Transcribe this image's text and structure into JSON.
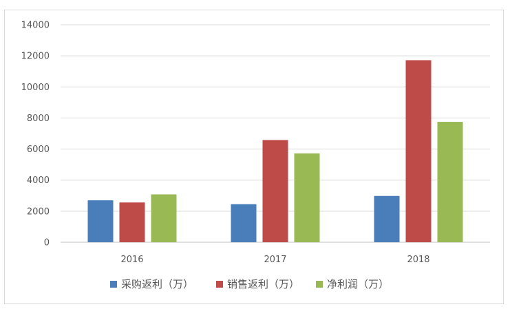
{
  "chart_data": {
    "type": "bar",
    "categories": [
      "2016",
      "2017",
      "2018"
    ],
    "series": [
      {
        "name": "采购返利（万）",
        "color": "#4a7ebb",
        "values": [
          2700,
          2450,
          2980
        ]
      },
      {
        "name": "销售返利（万）",
        "color": "#be4b48",
        "values": [
          2560,
          6580,
          11720
        ]
      },
      {
        "name": "净利润（万）",
        "color": "#98b954",
        "values": [
          3080,
          5720,
          7750
        ]
      }
    ],
    "yticks": [
      "0",
      "2000",
      "4000",
      "6000",
      "8000",
      "10000",
      "12000",
      "14000"
    ],
    "ylim": [
      0,
      14000
    ],
    "grid": true,
    "legend_position": "bottom",
    "title": "",
    "xlabel": "",
    "ylabel": ""
  }
}
